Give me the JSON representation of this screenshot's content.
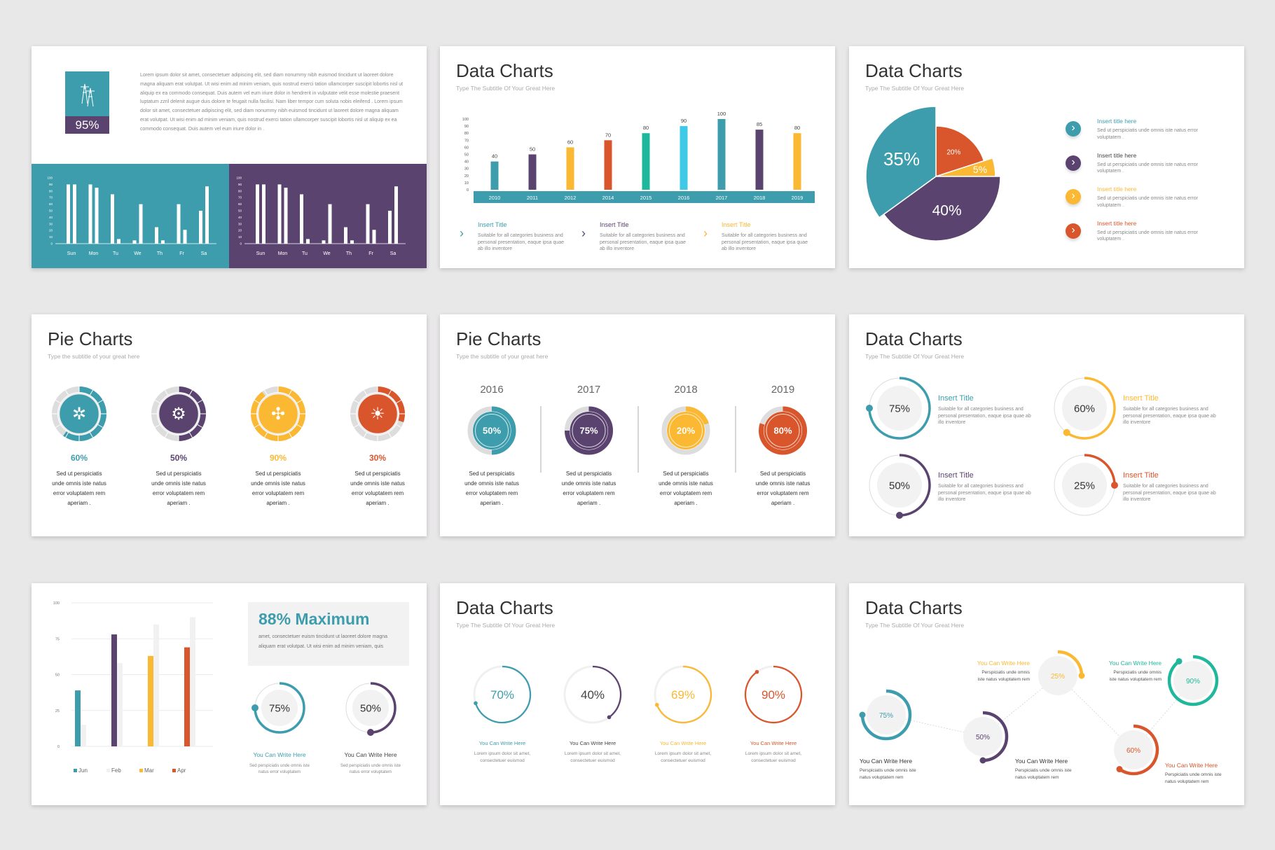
{
  "colors": {
    "teal": "#3d9dad",
    "purple": "#5b4370",
    "yellow": "#fbb833",
    "orange": "#d9552b",
    "green": "#1fb89c",
    "cyan": "#3ec9e6",
    "grey": "#dddddd",
    "light": "#f1f1f1",
    "background": "#e9e8e9"
  },
  "slide1": {
    "icon": "power-tower-icon",
    "stat": "95%",
    "paragraph": "Lorem ipsum dolor sit amet, consectetuer adipiscing elit, sed diam nonummy nibh euismod tincidunt ut laoreet dolore magna aliquam erat volutpat. Ut wisi enim ad minim veniam, quis nostrud exerci tation ullamcorper suscipit lobortis nisl ut aliquip ex ea commodo consequat. Duis autem vel eum iriure dolor in hendrerit in vulputate velit esse molestie praesent luptatum zzril delenit augue duis dolore te feugait nulla facilisi. Nam liber tempor cum soluta nobis eleifend . Lorem ipsum dolor sit amet, consectetuer adipiscing elit, sed diam nonummy nibh euismod tincidunt ut laoreet dolore magna aliquam erat volutpat. Ut wisi enim ad minim veniam, quis nostrud exerci tation ullamcorper suscipit lobortis nisl ut aliquip ex ea commodo consequat. Duis autem vel eum iriure dolor in ."
  },
  "slide2": {
    "title": "Data Charts",
    "subtitle": "Type The Subtitle Of Your Great Here",
    "items": [
      {
        "title": "Insert Title",
        "text": "Suitable for all categories business and personal presentation, eaque ipsa quae ab illo inventore",
        "color": "#3d9dad"
      },
      {
        "title": "Insert Title",
        "text": "Suitable for all categories business and personal presentation, eaque ipsa quae ab illo inventore",
        "color": "#5b4370"
      },
      {
        "title": "Insert Title",
        "text": "Suitable for all categories business and personal presentation, eaque ipsa quae ab illo inventore",
        "color": "#fbb833"
      }
    ]
  },
  "slide3": {
    "title": "Data Charts",
    "subtitle": "Type The Subtitle Of Your Great Here",
    "items": [
      {
        "title": "Insert title here",
        "text": "Sed ut perspiciatis unde omnis iste natus error voluptatem .",
        "color": "#3d9dad",
        "title_color": "#3d9dad"
      },
      {
        "title": "Insert title here",
        "text": "Sed ut perspiciatis unde omnis iste natus error voluptatem .",
        "color": "#5b4370",
        "title_color": "#444444"
      },
      {
        "title": "Insert title here",
        "text": "Sed ut perspiciatis unde omnis iste natus error voluptatem .",
        "color": "#fbb833",
        "title_color": "#fbb833"
      },
      {
        "title": "Insert title here",
        "text": "Sed ut perspiciatis unde omnis iste natus error voluptatem .",
        "color": "#d9552b",
        "title_color": "#d9552b"
      }
    ]
  },
  "slide4": {
    "title": "Pie Charts",
    "subtitle": "Type the subtitle of your great here",
    "items": [
      {
        "value": 60,
        "label": "60%",
        "color": "#3d9dad",
        "icon": "idea-gears-icon",
        "text": [
          "Sed ut perspiciatis",
          "unde omnis iste natus",
          "error voluptatem rem",
          "aperiam ."
        ]
      },
      {
        "value": 50,
        "label": "50%",
        "color": "#5b4370",
        "icon": "gear-target-icon",
        "text": [
          "Sed ut perspiciatis",
          "unde omnis iste natus",
          "error voluptatem rem",
          "aperiam ."
        ]
      },
      {
        "value": 90,
        "label": "90%",
        "color": "#fbb833",
        "icon": "network-icon",
        "text": [
          "Sed ut perspiciatis",
          "unde omnis iste natus",
          "error voluptatem rem",
          "aperiam ."
        ]
      },
      {
        "value": 30,
        "label": "30%",
        "color": "#d9552b",
        "icon": "head-lightbulb-icon",
        "text": [
          "Sed ut perspiciatis",
          "unde omnis iste natus",
          "error voluptatem rem",
          "aperiam ."
        ]
      }
    ]
  },
  "slide5": {
    "title": "Pie Charts",
    "subtitle": "Type the subtitle of your great here",
    "items": [
      {
        "year": "2016",
        "value": 50,
        "label": "50%",
        "color": "#3d9dad",
        "text": [
          "Sed ut perspiciatis",
          "unde omnis iste natus",
          "error voluptatem rem",
          "aperiam ."
        ]
      },
      {
        "year": "2017",
        "value": 75,
        "label": "75%",
        "color": "#5b4370",
        "text": [
          "Sed ut perspiciatis",
          "unde omnis iste natus",
          "error voluptatem rem",
          "aperiam ."
        ]
      },
      {
        "year": "2018",
        "value": 20,
        "label": "20%",
        "color": "#fbb833",
        "text": [
          "Sed ut perspiciatis",
          "unde omnis iste natus",
          "error voluptatem rem",
          "aperiam ."
        ]
      },
      {
        "year": "2019",
        "value": 80,
        "label": "80%",
        "color": "#d9552b",
        "text": [
          "Sed ut perspiciatis",
          "unde omnis iste natus",
          "error voluptatem rem",
          "aperiam ."
        ]
      }
    ]
  },
  "slide6": {
    "title": "Data Charts",
    "subtitle": "Type The Subtitle Of Your Great Here",
    "items": [
      {
        "value": 75,
        "label": "75%",
        "color": "#3d9dad",
        "title_color": "#3d9dad",
        "title": "Insert Title",
        "text": "Suitable for all categories business and personal presentation, eaque ipsa quae ab illo inventore"
      },
      {
        "value": 60,
        "label": "60%",
        "color": "#fbb833",
        "title_color": "#fbb833",
        "title": "Insert Title",
        "text": "Suitable for all categories business and personal presentation, eaque ipsa quae ab illo inventore"
      },
      {
        "value": 50,
        "label": "50%",
        "color": "#5b4370",
        "title_color": "#5b4370",
        "title": "Insert Title",
        "text": "Suitable for all categories business and personal presentation, eaque ipsa quae ab illo inventore"
      },
      {
        "value": 25,
        "label": "25%",
        "color": "#d9552b",
        "title_color": "#d9552b",
        "title": "Insert Title",
        "text": "Suitable for all categories business and personal presentation, eaque ipsa quae ab illo inventore"
      }
    ]
  },
  "slide7": {
    "headline": "88% Maximum",
    "paragraph": "amet, consectetuer euism tincidunt ut laoreet dolore magna aliquam erat volutpat. Ut wisi enim ad minim veniam, quis",
    "items": [
      {
        "value": 75,
        "label": "75%",
        "color": "#3d9dad",
        "title_color": "#3d9dad",
        "title": "You Can Write Here",
        "text": "Sed perspiciatis unde omnis iste natus error voluptatem"
      },
      {
        "value": 50,
        "label": "50%",
        "color": "#5b4370",
        "title_color": "#444444",
        "title": "You Can Write Here",
        "text": "Sed perspiciatis unde omnis iste natus error voluptatem"
      }
    ]
  },
  "slide8": {
    "title": "Data Charts",
    "subtitle": "Type The Subtitle Of Your Great Here",
    "items": [
      {
        "value": 70,
        "label": "70%",
        "color": "#3d9dad",
        "title_color": "#3d9dad",
        "title": "You Can Write Here",
        "text": "Lorem ipsum dolor sit amet, consectetuer euismod"
      },
      {
        "value": 40,
        "label": "40%",
        "color": "#5b4370",
        "title_color": "#444444",
        "title": "You Can Write Here",
        "text": "Lorem ipsum dolor sit amet, consectetuer euismod"
      },
      {
        "value": 69,
        "label": "69%",
        "color": "#fbb833",
        "title_color": "#fbb833",
        "title": "You Can Write Here",
        "text": "Lorem ipsum dolor sit amet, consectetuer euismod"
      },
      {
        "value": 90,
        "label": "90%",
        "color": "#d9552b",
        "title_color": "#d9552b",
        "title": "You Can Write Here",
        "text": "Lorem ipsum dolor sit amet, consectetuer euismod"
      }
    ]
  },
  "slide9": {
    "title": "Data Charts",
    "subtitle": "Type The Subtitle Of Your Great Here",
    "items": [
      {
        "value": 75,
        "label": "75%",
        "color": "#3d9dad",
        "title_color": "#333333",
        "title": "You Can Write Here",
        "text": "Perspiciatis unde omnis iste natus voluptatem rem"
      },
      {
        "value": 50,
        "label": "50%",
        "color": "#5b4370",
        "title_color": "#333333",
        "title": "You Can Write Here",
        "text": "Perspiciatis unde omnis iste natus voluptatem rem"
      },
      {
        "value": 25,
        "label": "25%",
        "color": "#fbb833",
        "title_color": "#fbb833",
        "title": "You Can Write Here",
        "text": "Perspiciatis unde omnis iste natus voluptatem rem"
      },
      {
        "value": 60,
        "label": "60%",
        "color": "#d9552b",
        "title_color": "#d9552b",
        "title": "You Can Write Here",
        "text": "Perspiciatis unde omnis iste natus voluptatem rem"
      },
      {
        "value": 90,
        "label": "90%",
        "color": "#1fb89c",
        "title_color": "#1fb89c",
        "title": "You Can Write Here",
        "text": "Perspiciatis unde omnis iste natus voluptatem rem"
      }
    ]
  },
  "chart_data": [
    {
      "type": "bar",
      "categories": [
        "Sun",
        "Mon",
        "Tu",
        "We",
        "Th",
        "Fr",
        "Sa"
      ],
      "series": [
        {
          "values": [
            90,
            90,
            75,
            5,
            25,
            60,
            50
          ]
        },
        {
          "values": [
            90,
            85,
            7,
            60,
            5,
            21,
            87
          ]
        }
      ],
      "ylim": [
        0,
        100
      ],
      "yticks": [
        0,
        10,
        20,
        30,
        40,
        50,
        60,
        70,
        80,
        90,
        100
      ],
      "grid": false,
      "panels": [
        "#3d9dad",
        "#5b4370"
      ]
    },
    {
      "type": "bar",
      "categories": [
        "2010",
        "2011",
        "2012",
        "2014",
        "2015",
        "2016",
        "2017",
        "2018",
        "2019"
      ],
      "values": [
        40,
        50,
        60,
        70,
        80,
        90,
        100,
        85,
        80
      ],
      "colors": [
        "#3d9dad",
        "#5b4370",
        "#fbb833",
        "#d9552b",
        "#1fb89c",
        "#3ec9e6",
        "#3d9dad",
        "#5b4370",
        "#fbb833"
      ],
      "ylim": [
        0,
        100
      ],
      "yticks": [
        0,
        10,
        20,
        30,
        40,
        50,
        60,
        70,
        80,
        90,
        100
      ],
      "grid": false,
      "data_labels": true
    },
    {
      "type": "pie",
      "slices": [
        {
          "label": "20%",
          "value": 20,
          "color": "#d9552b"
        },
        {
          "label": "5%",
          "value": 5,
          "color": "#fbb833"
        },
        {
          "label": "40%",
          "value": 40,
          "color": "#5b4370"
        },
        {
          "label": "35%",
          "value": 35,
          "color": "#3d9dad"
        }
      ]
    },
    {
      "type": "bar",
      "categories": [
        "",
        "",
        "",
        ""
      ],
      "series": [
        {
          "values": [
            39,
            78,
            63,
            69
          ],
          "colors": [
            "#3d9dad",
            "#5b4370",
            "#fbb833",
            "#d9552b"
          ]
        },
        {
          "values": [
            15,
            58,
            85,
            90
          ],
          "colors": [
            "#f1f1f1",
            "#f1f1f1",
            "#f1f1f1",
            "#f1f1f1"
          ]
        }
      ],
      "legend": [
        {
          "name": "Jun",
          "color": "#3d9dad"
        },
        {
          "name": "Feb",
          "color": "#f1f1f1"
        },
        {
          "name": "Mar",
          "color": "#fbb833"
        },
        {
          "name": "Apr",
          "color": "#d9552b"
        }
      ],
      "legend_position": "bottom",
      "ylim": [
        0,
        100
      ],
      "yticks": [
        0,
        25,
        50,
        75,
        100
      ],
      "grid": true
    }
  ]
}
